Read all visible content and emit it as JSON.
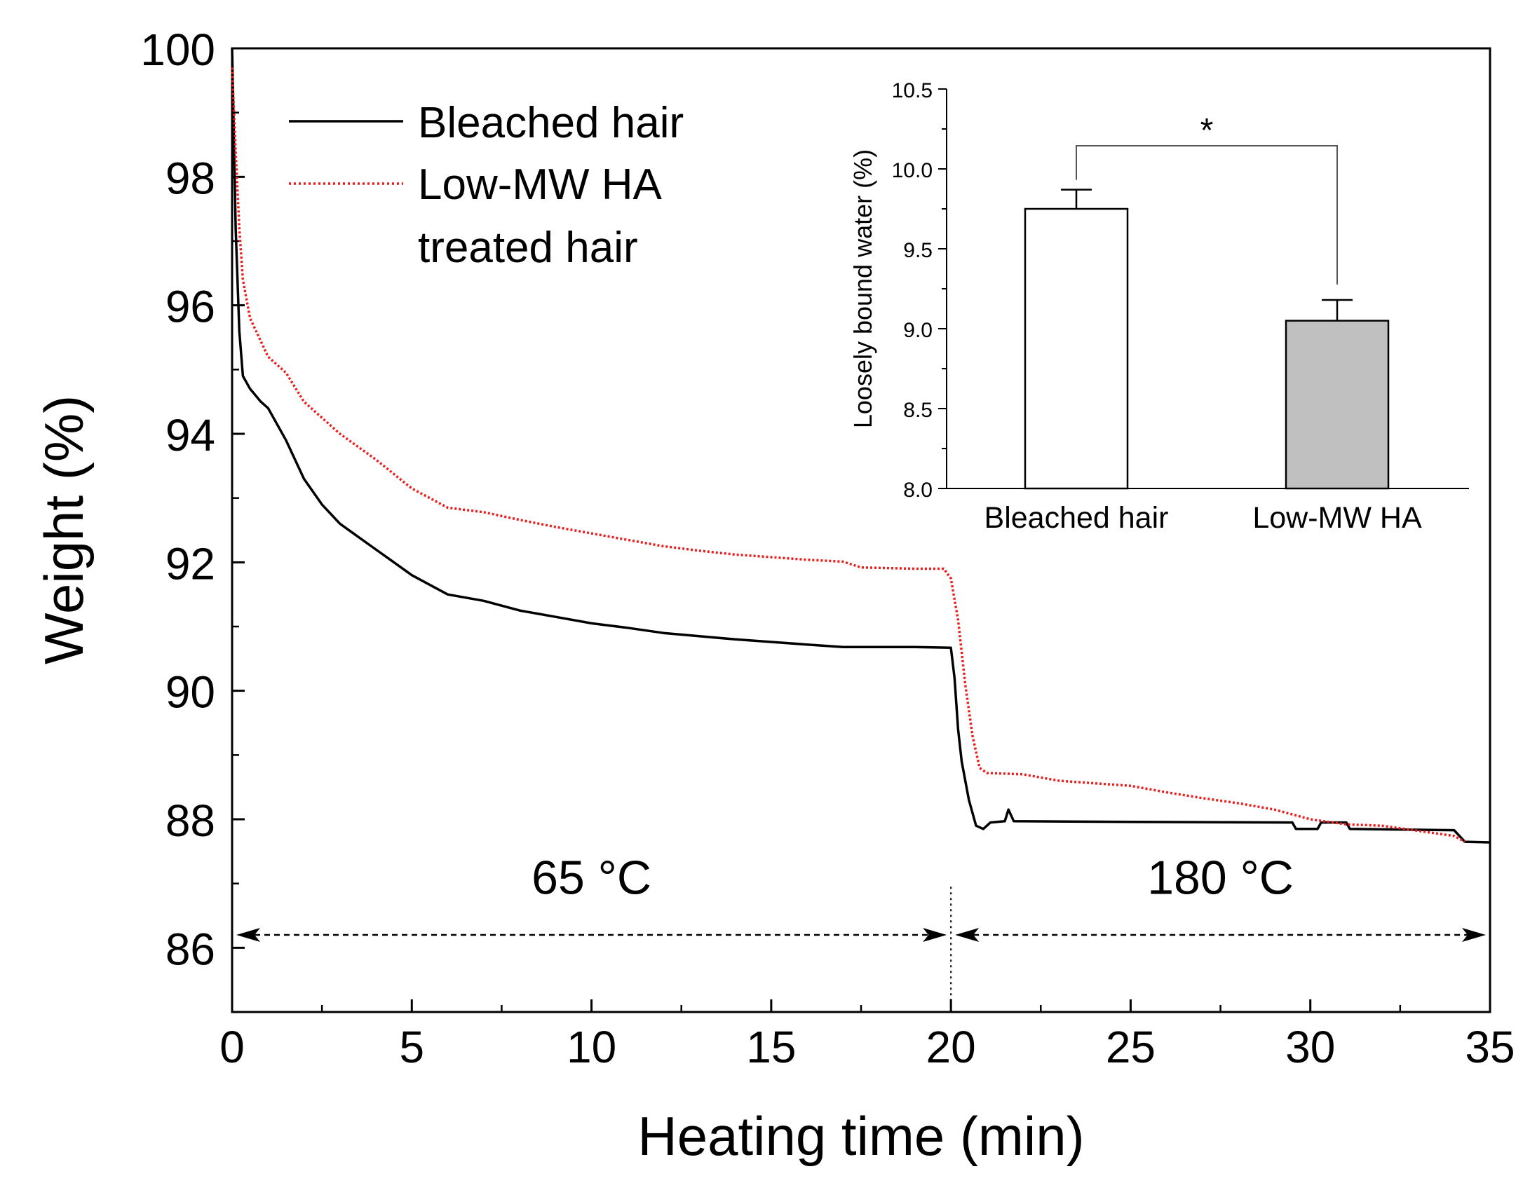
{
  "chart_data": [
    {
      "type": "line",
      "xlabel": "Heating time (min)",
      "ylabel": "Weight (%)",
      "xlim": [
        0,
        35
      ],
      "ylim": [
        85,
        100
      ],
      "xticks": [
        "0",
        "5",
        "10",
        "15",
        "20",
        "25",
        "30",
        "35"
      ],
      "yticks": [
        "86",
        "88",
        "90",
        "92",
        "94",
        "96",
        "98",
        "100"
      ],
      "legend": {
        "placement": "top-left",
        "entries": [
          {
            "lines": [
              "Bleached hair"
            ]
          },
          {
            "lines": [
              "Low-MW HA",
              "treated hair"
            ]
          }
        ]
      },
      "series": [
        {
          "name": "Bleached hair",
          "color": "#000000",
          "style": "solid",
          "points": [
            [
              0,
              100
            ],
            [
              0.1,
              97.2
            ],
            [
              0.2,
              95.6
            ],
            [
              0.3,
              94.9
            ],
            [
              0.5,
              94.7
            ],
            [
              0.8,
              94.5
            ],
            [
              1,
              94.4
            ],
            [
              1.5,
              93.9
            ],
            [
              2,
              93.3
            ],
            [
              2.5,
              92.9
            ],
            [
              3,
              92.6
            ],
            [
              3.5,
              92.4
            ],
            [
              4,
              92.2
            ],
            [
              4.5,
              92.0
            ],
            [
              5,
              91.8
            ],
            [
              6,
              91.5
            ],
            [
              7,
              91.4
            ],
            [
              8,
              91.25
            ],
            [
              9,
              91.15
            ],
            [
              10,
              91.05
            ],
            [
              11,
              90.98
            ],
            [
              12,
              90.9
            ],
            [
              13,
              90.85
            ],
            [
              14,
              90.8
            ],
            [
              15,
              90.76
            ],
            [
              16,
              90.72
            ],
            [
              17,
              90.68
            ],
            [
              18,
              90.68
            ],
            [
              19,
              90.68
            ],
            [
              20,
              90.67
            ],
            [
              20.1,
              90.2
            ],
            [
              20.2,
              89.4
            ],
            [
              20.3,
              88.9
            ],
            [
              20.5,
              88.3
            ],
            [
              20.7,
              87.9
            ],
            [
              20.9,
              87.85
            ],
            [
              21.1,
              87.95
            ],
            [
              21.5,
              87.97
            ],
            [
              21.6,
              88.15
            ],
            [
              21.75,
              87.97
            ],
            [
              25,
              87.96
            ],
            [
              29.5,
              87.95
            ],
            [
              29.6,
              87.85
            ],
            [
              30.2,
              87.85
            ],
            [
              30.3,
              87.95
            ],
            [
              31,
              87.95
            ],
            [
              31.1,
              87.85
            ],
            [
              34,
              87.83
            ],
            [
              34.3,
              87.65
            ],
            [
              35,
              87.64
            ]
          ]
        },
        {
          "name": "Low-MW HA treated hair",
          "color": "#ee1c1c",
          "style": "dotted",
          "points": [
            [
              0,
              99.7
            ],
            [
              0.1,
              98.4
            ],
            [
              0.2,
              97.2
            ],
            [
              0.3,
              96.4
            ],
            [
              0.5,
              95.8
            ],
            [
              1,
              95.2
            ],
            [
              1.5,
              94.95
            ],
            [
              2,
              94.5
            ],
            [
              3,
              94.0
            ],
            [
              4,
              93.6
            ],
            [
              5,
              93.15
            ],
            [
              6,
              92.85
            ],
            [
              7,
              92.78
            ],
            [
              8,
              92.66
            ],
            [
              9,
              92.55
            ],
            [
              10,
              92.45
            ],
            [
              11,
              92.35
            ],
            [
              12,
              92.25
            ],
            [
              13,
              92.18
            ],
            [
              14,
              92.12
            ],
            [
              15,
              92.08
            ],
            [
              16,
              92.04
            ],
            [
              17,
              92.01
            ],
            [
              17.5,
              91.92
            ],
            [
              19,
              91.9
            ],
            [
              19.8,
              91.9
            ],
            [
              20,
              91.75
            ],
            [
              20.2,
              91.1
            ],
            [
              20.4,
              90.1
            ],
            [
              20.6,
              89.3
            ],
            [
              20.8,
              88.8
            ],
            [
              21,
              88.72
            ],
            [
              22,
              88.7
            ],
            [
              23,
              88.6
            ],
            [
              24,
              88.56
            ],
            [
              25,
              88.52
            ],
            [
              26,
              88.42
            ],
            [
              27,
              88.33
            ],
            [
              28,
              88.25
            ],
            [
              29,
              88.15
            ],
            [
              30,
              88.0
            ],
            [
              31,
              87.92
            ],
            [
              32,
              87.9
            ],
            [
              33,
              87.82
            ],
            [
              34,
              87.74
            ],
            [
              34.3,
              87.65
            ]
          ]
        }
      ],
      "annotations": [
        {
          "text": "65 °C",
          "x": 10,
          "y": 87.1
        },
        {
          "text": "180 °C",
          "x": 27.5,
          "y": 87.1
        }
      ],
      "arrows": [
        {
          "from": 0,
          "to": 20,
          "y": 86.2,
          "style": "dashed"
        },
        {
          "from": 20,
          "to": 35,
          "y": 86.2,
          "style": "dashed"
        }
      ],
      "vline": {
        "x": 20,
        "style": "dotted"
      }
    },
    {
      "type": "bar",
      "position": "inset-top-right",
      "ylabel": "Loosely bound water (%)",
      "ylim": [
        8.0,
        10.5
      ],
      "yticks": [
        "8.0",
        "8.5",
        "9.0",
        "9.5",
        "10.0",
        "10.5"
      ],
      "categories": [
        "Bleached hair",
        "Low-MW HA"
      ],
      "values": [
        9.75,
        9.05
      ],
      "errors": [
        0.12,
        0.13
      ],
      "colors": [
        "#ffffff",
        "#c0c0c0"
      ],
      "significance": "*"
    }
  ]
}
